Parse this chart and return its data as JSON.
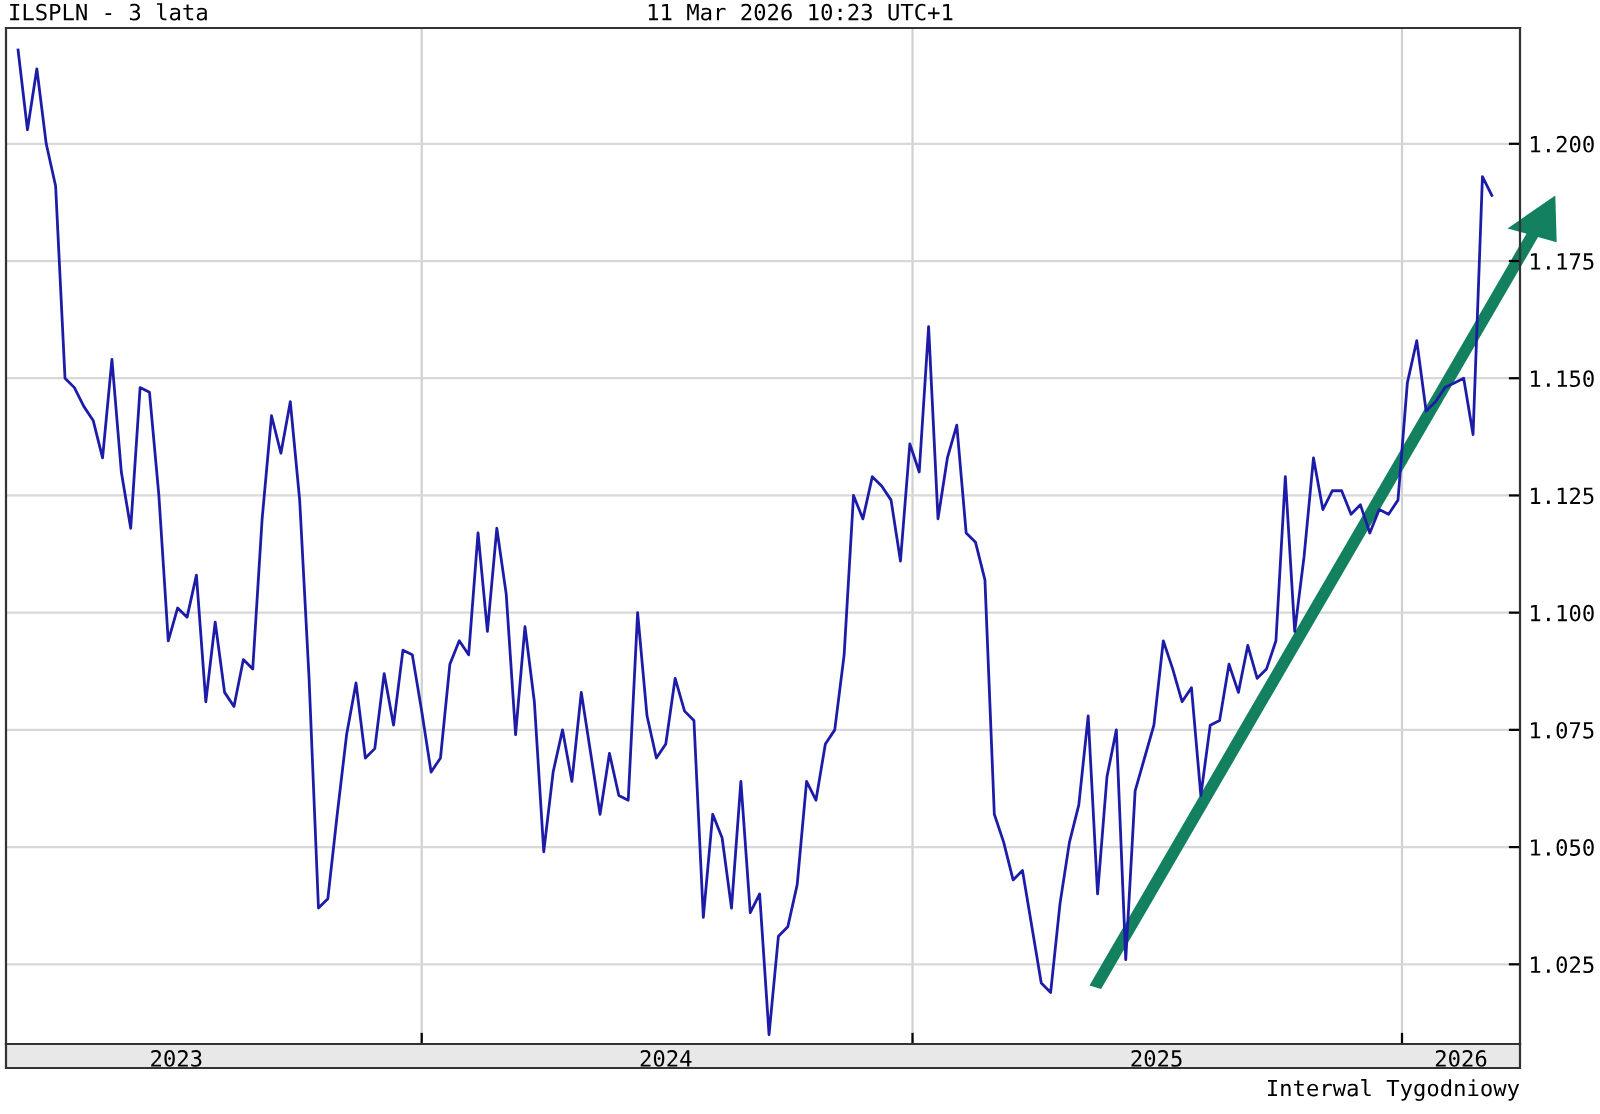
{
  "chart_data": {
    "type": "line",
    "title": "ILSPLN - 3 lata",
    "subtitle": "11 Mar 2026 10:23 UTC+1",
    "annotations": [
      "Interwal Tygodniowy"
    ],
    "x": [
      "2023-03-06",
      "2023-03-13",
      "2023-03-20",
      "2023-03-27",
      "2023-04-03",
      "2023-04-10",
      "2023-04-17",
      "2023-04-24",
      "2023-05-01",
      "2023-05-08",
      "2023-05-15",
      "2023-05-22",
      "2023-05-29",
      "2023-06-05",
      "2023-06-12",
      "2023-06-19",
      "2023-06-26",
      "2023-07-03",
      "2023-07-10",
      "2023-07-17",
      "2023-07-24",
      "2023-07-31",
      "2023-08-07",
      "2023-08-14",
      "2023-08-21",
      "2023-08-28",
      "2023-09-04",
      "2023-09-11",
      "2023-09-18",
      "2023-09-25",
      "2023-10-02",
      "2023-10-09",
      "2023-10-16",
      "2023-10-23",
      "2023-10-30",
      "2023-11-06",
      "2023-11-13",
      "2023-11-20",
      "2023-11-27",
      "2023-12-04",
      "2023-12-11",
      "2023-12-18",
      "2023-12-25",
      "2024-01-01",
      "2024-01-08",
      "2024-01-15",
      "2024-01-22",
      "2024-01-29",
      "2024-02-05",
      "2024-02-12",
      "2024-02-19",
      "2024-02-26",
      "2024-03-04",
      "2024-03-11",
      "2024-03-18",
      "2024-03-25",
      "2024-04-01",
      "2024-04-08",
      "2024-04-15",
      "2024-04-22",
      "2024-04-29",
      "2024-05-06",
      "2024-05-13",
      "2024-05-20",
      "2024-05-27",
      "2024-06-03",
      "2024-06-10",
      "2024-06-17",
      "2024-06-24",
      "2024-07-01",
      "2024-07-08",
      "2024-07-15",
      "2024-07-22",
      "2024-07-29",
      "2024-08-05",
      "2024-08-12",
      "2024-08-19",
      "2024-08-26",
      "2024-09-02",
      "2024-09-09",
      "2024-09-16",
      "2024-09-23",
      "2024-09-30",
      "2024-10-07",
      "2024-10-14",
      "2024-10-21",
      "2024-10-28",
      "2024-11-04",
      "2024-11-11",
      "2024-11-18",
      "2024-11-25",
      "2024-12-02",
      "2024-12-09",
      "2024-12-16",
      "2024-12-23",
      "2024-12-30",
      "2025-01-06",
      "2025-01-13",
      "2025-01-20",
      "2025-01-27",
      "2025-02-03",
      "2025-02-10",
      "2025-02-17",
      "2025-02-24",
      "2025-03-03",
      "2025-03-10",
      "2025-03-17",
      "2025-03-24",
      "2025-03-31",
      "2025-04-07",
      "2025-04-14",
      "2025-04-21",
      "2025-04-28",
      "2025-05-05",
      "2025-05-12",
      "2025-05-19",
      "2025-05-26",
      "2025-06-02",
      "2025-06-09",
      "2025-06-16",
      "2025-06-23",
      "2025-06-30",
      "2025-07-07",
      "2025-07-14",
      "2025-07-21",
      "2025-07-28",
      "2025-08-04",
      "2025-08-11",
      "2025-08-18",
      "2025-08-25",
      "2025-09-01",
      "2025-09-08",
      "2025-09-15",
      "2025-09-22",
      "2025-09-29",
      "2025-10-06",
      "2025-10-13",
      "2025-10-20",
      "2025-10-27",
      "2025-11-03",
      "2025-11-10",
      "2025-11-17",
      "2025-11-24",
      "2025-12-01",
      "2025-12-08",
      "2025-12-15",
      "2025-12-22",
      "2025-12-29",
      "2026-01-05",
      "2026-01-12",
      "2026-01-19",
      "2026-01-26",
      "2026-02-02",
      "2026-02-09",
      "2026-02-16",
      "2026-02-23",
      "2026-03-02",
      "2026-03-09"
    ],
    "series": [
      {
        "color": "#1c1ca8",
        "values": [
          1.22,
          1.203,
          1.216,
          1.2,
          1.191,
          1.15,
          1.148,
          1.144,
          1.141,
          1.133,
          1.154,
          1.13,
          1.118,
          1.148,
          1.147,
          1.125,
          1.094,
          1.101,
          1.099,
          1.108,
          1.081,
          1.098,
          1.083,
          1.08,
          1.09,
          1.088,
          1.12,
          1.142,
          1.134,
          1.145,
          1.124,
          1.086,
          1.037,
          1.039,
          1.057,
          1.074,
          1.085,
          1.069,
          1.071,
          1.087,
          1.076,
          1.092,
          1.091,
          1.079,
          1.066,
          1.069,
          1.089,
          1.094,
          1.091,
          1.117,
          1.096,
          1.118,
          1.104,
          1.074,
          1.097,
          1.081,
          1.049,
          1.066,
          1.075,
          1.064,
          1.083,
          1.07,
          1.057,
          1.07,
          1.061,
          1.06,
          1.1,
          1.078,
          1.069,
          1.072,
          1.086,
          1.079,
          1.077,
          1.035,
          1.057,
          1.052,
          1.037,
          1.064,
          1.036,
          1.04,
          1.01,
          1.031,
          1.033,
          1.042,
          1.064,
          1.06,
          1.072,
          1.075,
          1.091,
          1.125,
          1.12,
          1.129,
          1.127,
          1.124,
          1.111,
          1.136,
          1.13,
          1.161,
          1.12,
          1.133,
          1.14,
          1.117,
          1.115,
          1.107,
          1.057,
          1.051,
          1.043,
          1.045,
          1.033,
          1.021,
          1.019,
          1.038,
          1.051,
          1.059,
          1.078,
          1.04,
          1.065,
          1.075,
          1.026,
          1.062,
          1.069,
          1.076,
          1.094,
          1.088,
          1.081,
          1.084,
          1.061,
          1.076,
          1.077,
          1.089,
          1.083,
          1.093,
          1.086,
          1.088,
          1.094,
          1.129,
          1.096,
          1.112,
          1.133,
          1.122,
          1.126,
          1.126,
          1.121,
          1.123,
          1.117,
          1.122,
          1.121,
          1.124,
          1.149,
          1.158,
          1.143,
          1.145,
          1.148,
          1.149,
          1.15,
          1.138,
          1.193,
          1.189
        ]
      }
    ],
    "xlim": [
      "2023-02-25",
      "2026-03-30"
    ],
    "xticks": [
      {
        "value": "2023-07-02",
        "label": "2023"
      },
      {
        "value": "2024-01-01",
        "label": null
      },
      {
        "value": "2024-07-01",
        "label": "2024"
      },
      {
        "value": "2025-01-01",
        "label": null
      },
      {
        "value": "2025-07-02",
        "label": "2025"
      },
      {
        "value": "2026-01-01",
        "label": null
      },
      {
        "value": "2026-02-14",
        "label": "2026"
      }
    ],
    "ylim": [
      1.008,
      1.2247
    ],
    "yticks": [
      {
        "value": 1.025,
        "label": "1.025"
      },
      {
        "value": 1.05,
        "label": "1.050"
      },
      {
        "value": 1.075,
        "label": "1.075"
      },
      {
        "value": 1.1,
        "label": "1.100"
      },
      {
        "value": 1.125,
        "label": "1.125"
      },
      {
        "value": 1.15,
        "label": "1.150"
      },
      {
        "value": 1.175,
        "label": "1.175"
      },
      {
        "value": 1.2,
        "label": "1.200"
      }
    ],
    "grid": true,
    "marker": "none",
    "line_style": "solid",
    "legend": false
  }
}
